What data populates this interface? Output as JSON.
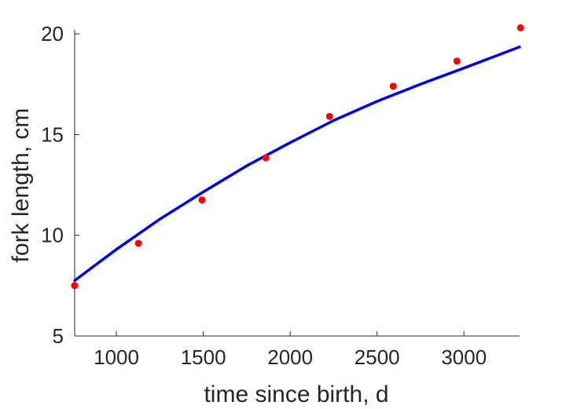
{
  "chart_data": {
    "type": "scatter",
    "title": "",
    "xlabel": "time since birth, d",
    "ylabel": "fork length, cm",
    "xlim": [
      760,
      3320
    ],
    "ylim": [
      5,
      20.2
    ],
    "xticks": [
      1000,
      1500,
      2000,
      2500,
      3000
    ],
    "yticks": [
      5,
      10,
      15,
      20
    ],
    "grid": false,
    "legend": "none",
    "series": [
      {
        "kind": "points",
        "color": "#ff0000",
        "x": [
          760,
          1127,
          1493,
          1860,
          2227,
          2593,
          2960,
          3326
        ],
        "y": [
          7.5,
          9.6,
          11.75,
          13.85,
          15.9,
          17.4,
          18.65,
          20.3
        ]
      },
      {
        "kind": "fit-line",
        "color": "#0000ee",
        "x": [
          760,
          1000,
          1250,
          1500,
          1750,
          2000,
          2250,
          2500,
          2750,
          3000,
          3320
        ],
        "y": [
          7.75,
          9.3,
          10.8,
          12.15,
          13.45,
          14.6,
          15.7,
          16.65,
          17.5,
          18.3,
          19.35
        ]
      }
    ]
  }
}
